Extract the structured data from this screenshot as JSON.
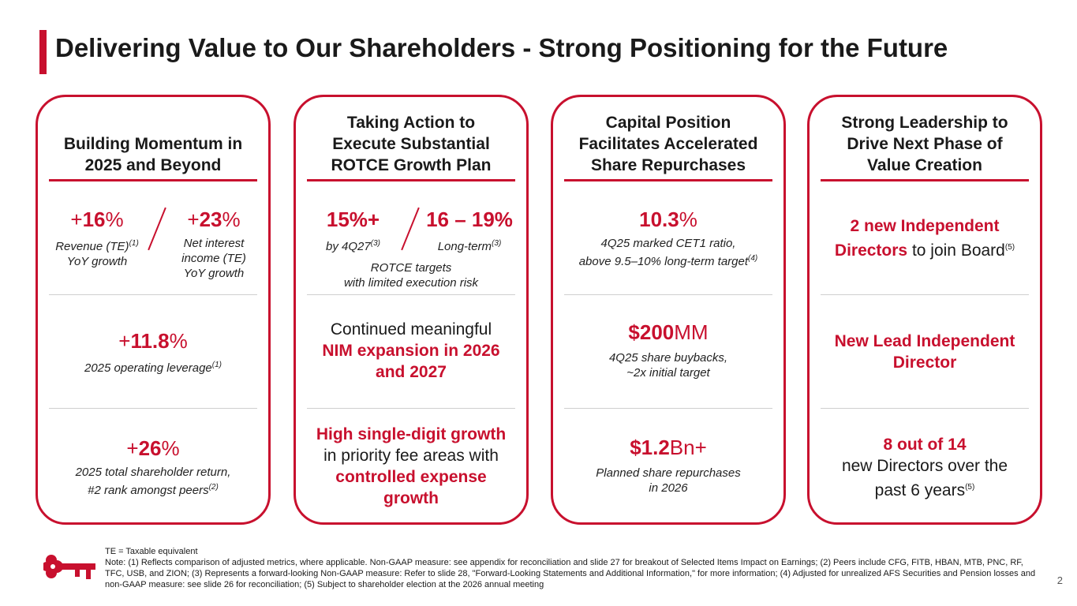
{
  "title": "Delivering Value to Our Shareholders - Strong Positioning for the Future",
  "brand_color": "#c8102e",
  "card1": {
    "head_l1": "Building Momentum in",
    "head_l2": "2025 and Beyond",
    "s1_sign": "+",
    "s1_val": "16",
    "s1_pct": "%",
    "s1_desc_l1": "Revenue (TE)",
    "s1_desc_sup": "(1)",
    "s1_desc_l2": "YoY growth",
    "s2_sign": "+",
    "s2_val": "23",
    "s2_pct": "%",
    "s2_desc_l1": "Net interest",
    "s2_desc_l2": "income (TE)",
    "s2_desc_l3": "YoY growth",
    "s3_sign": "+",
    "s3_val": "11.8",
    "s3_pct": "%",
    "s3_desc": "2025 operating leverage",
    "s3_sup": "(1)",
    "s4_sign": "+",
    "s4_val": "26",
    "s4_pct": "%",
    "s4_desc_l1": "2025 total shareholder return,",
    "s4_desc_l2": "#2 rank amongst peers",
    "s4_sup": "(2)"
  },
  "card2": {
    "head_l1": "Taking Action to",
    "head_l2": "Execute Substantial",
    "head_l3": "ROTCE Growth Plan",
    "s1_val": "15%+",
    "s1_desc": "by 4Q27",
    "s1_sup": "(3)",
    "s2_val": "16 – 19%",
    "s2_desc": "Long-term",
    "s2_sup": "(3)",
    "targets_l1": "ROTCE targets",
    "targets_l2": "with limited execution risk",
    "nim_l1": "Continued meaningful",
    "nim_l2": "NIM expansion in 2026",
    "nim_l3": "and 2027",
    "fee_l1": "High single-digit growth",
    "fee_l2": "in priority fee areas with",
    "fee_l3": "controlled expense",
    "fee_l4": "growth"
  },
  "card3": {
    "head_l1": "Capital Position",
    "head_l2": "Facilitates Accelerated",
    "head_l3": "Share Repurchases",
    "s1_val": "10.3",
    "s1_pct": "%",
    "s1_desc_l1": "4Q25 marked CET1 ratio,",
    "s1_desc_l2": "above 9.5–10% long-term target",
    "s1_sup": "(4)",
    "s2_val": "$200",
    "s2_unit": "MM",
    "s2_desc_l1": "4Q25 share buybacks,",
    "s2_desc_l2": "~2x initial target",
    "s3_val": "$1.2",
    "s3_unit": "Bn+",
    "s3_desc_l1": "Planned share repurchases",
    "s3_desc_l2": "in 2026"
  },
  "card4": {
    "head_l1": "Strong Leadership to",
    "head_l2": "Drive Next Phase of",
    "head_l3": "Value Creation",
    "s1_red_l1": "2 new Independent",
    "s1_red_l2": "Directors",
    "s1_rest": " to join Board",
    "s1_sup": "(5)",
    "s2_l1": "New Lead Independent",
    "s2_l2": "Director",
    "s3_red": "8 out of 14",
    "s3_l1": "new Directors over the",
    "s3_l2": "past 6 years",
    "s3_sup": "(5)"
  },
  "footer": {
    "te": "TE = Taxable equivalent",
    "note": "Note: (1)  Reflects comparison of adjusted metrics, where applicable. Non-GAAP measure: see appendix for reconciliation and slide 27 for breakout of Selected Items Impact on Earnings; (2) Peers include CFG, FITB, HBAN, MTB, PNC, RF, TFC, USB, and ZION; (3) Represents a forward-looking Non-GAAP measure: Refer to slide 28, \"Forward-Looking Statements and Additional Information,\" for more information; (4) Adjusted for unrealized AFS Securities and Pension losses and non-GAAP measure: see slide 26 for reconciliation; (5) Subject to shareholder election at the 2026 annual meeting"
  },
  "logo_icon": "key-logo-icon",
  "page_number": "2"
}
